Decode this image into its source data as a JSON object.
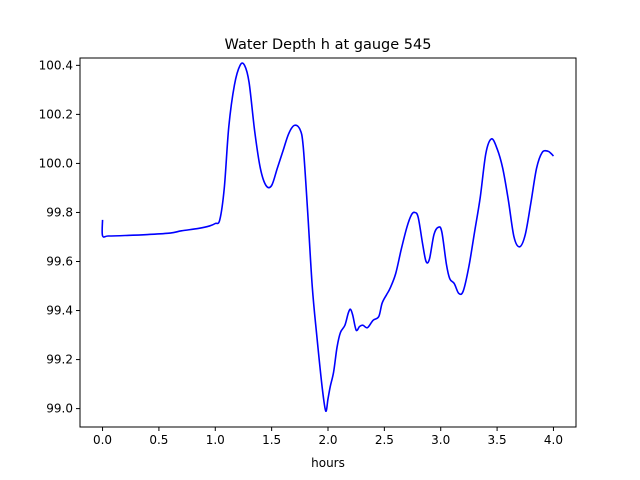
{
  "chart_data": {
    "type": "line",
    "title": "Water Depth h at gauge 545",
    "xlabel": "hours",
    "ylabel": "",
    "xlim": [
      -0.2,
      4.2
    ],
    "ylim": [
      98.925,
      100.43
    ],
    "xticks": [
      0.0,
      0.5,
      1.0,
      1.5,
      2.0,
      2.5,
      3.0,
      3.5,
      4.0
    ],
    "xtick_labels": [
      "0.0",
      "0.5",
      "1.0",
      "1.5",
      "2.0",
      "2.5",
      "3.0",
      "3.5",
      "4.0"
    ],
    "yticks": [
      99.0,
      99.2,
      99.4,
      99.6,
      99.8,
      100.0,
      100.2,
      100.4
    ],
    "ytick_labels": [
      "99.0",
      "99.2",
      "99.4",
      "99.6",
      "99.8",
      "100.0",
      "100.2",
      "100.4"
    ],
    "grid": false,
    "series": [
      {
        "color": "#0000ff",
        "x": [
          0.0,
          0.0,
          0.05,
          0.2,
          0.4,
          0.6,
          0.7,
          0.85,
          0.95,
          1.0,
          1.04,
          1.08,
          1.12,
          1.17,
          1.22,
          1.26,
          1.3,
          1.35,
          1.4,
          1.45,
          1.5,
          1.55,
          1.6,
          1.65,
          1.7,
          1.75,
          1.78,
          1.82,
          1.86,
          1.9,
          1.95,
          1.98,
          2.0,
          2.02,
          2.05,
          2.08,
          2.11,
          2.15,
          2.18,
          2.2,
          2.22,
          2.25,
          2.28,
          2.31,
          2.35,
          2.4,
          2.45,
          2.48,
          2.52,
          2.55,
          2.6,
          2.65,
          2.7,
          2.74,
          2.77,
          2.8,
          2.84,
          2.87,
          2.9,
          2.94,
          2.98,
          3.01,
          3.05,
          3.08,
          3.12,
          3.16,
          3.2,
          3.25,
          3.3,
          3.35,
          3.4,
          3.45,
          3.5,
          3.55,
          3.6,
          3.65,
          3.7,
          3.75,
          3.8,
          3.85,
          3.9,
          3.95,
          3.98,
          4.0
        ],
        "y": [
          99.77,
          99.705,
          99.704,
          99.706,
          99.71,
          99.716,
          99.725,
          99.735,
          99.745,
          99.755,
          99.77,
          99.9,
          100.15,
          100.32,
          100.4,
          100.4,
          100.33,
          100.13,
          99.98,
          99.91,
          99.91,
          99.98,
          100.05,
          100.12,
          100.155,
          100.14,
          100.07,
          99.8,
          99.5,
          99.3,
          99.08,
          98.99,
          99.04,
          99.09,
          99.15,
          99.25,
          99.31,
          99.34,
          99.39,
          99.405,
          99.38,
          99.32,
          99.335,
          99.34,
          99.33,
          99.36,
          99.375,
          99.43,
          99.465,
          99.49,
          99.55,
          99.65,
          99.74,
          99.79,
          99.8,
          99.78,
          99.67,
          99.6,
          99.61,
          99.71,
          99.74,
          99.72,
          99.59,
          99.53,
          99.51,
          99.47,
          99.48,
          99.58,
          99.72,
          99.86,
          100.04,
          100.1,
          100.06,
          99.98,
          99.85,
          99.7,
          99.66,
          99.71,
          99.84,
          99.98,
          100.045,
          100.05,
          100.04,
          100.03
        ]
      }
    ]
  }
}
